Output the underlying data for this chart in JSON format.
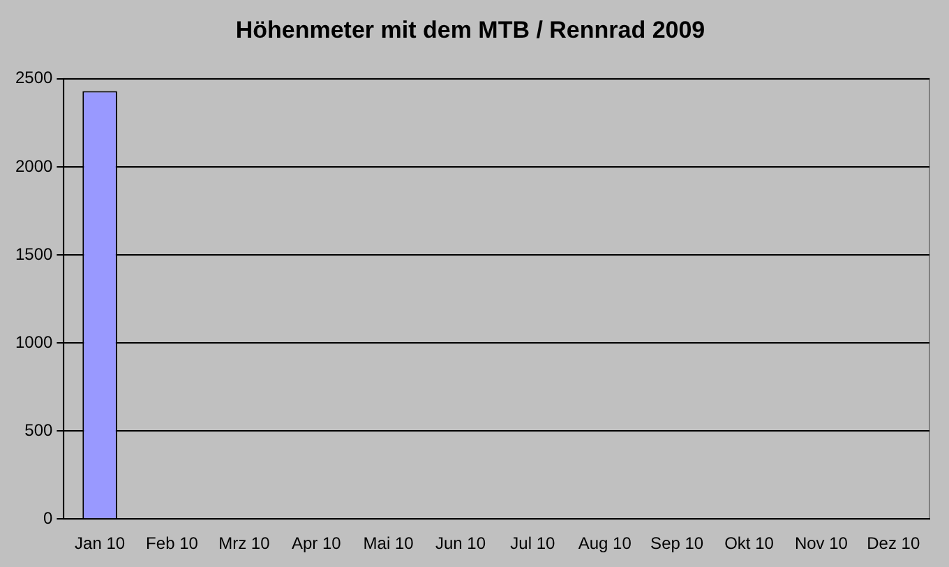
{
  "chart_data": {
    "type": "bar",
    "title": "Höhenmeter mit dem MTB / Rennrad 2009",
    "categories": [
      "Jan 10",
      "Feb 10",
      "Mrz 10",
      "Apr 10",
      "Mai 10",
      "Jun 10",
      "Jul 10",
      "Aug 10",
      "Sep 10",
      "Okt 10",
      "Nov 10",
      "Dez 10"
    ],
    "values": [
      2430,
      null,
      null,
      null,
      null,
      null,
      null,
      null,
      null,
      null,
      null,
      null
    ],
    "color": "#9999ff",
    "ylim": [
      0,
      2500
    ],
    "yticks": [
      0,
      500,
      1000,
      1500,
      2000,
      2500
    ],
    "grid": "y",
    "legend": false
  }
}
